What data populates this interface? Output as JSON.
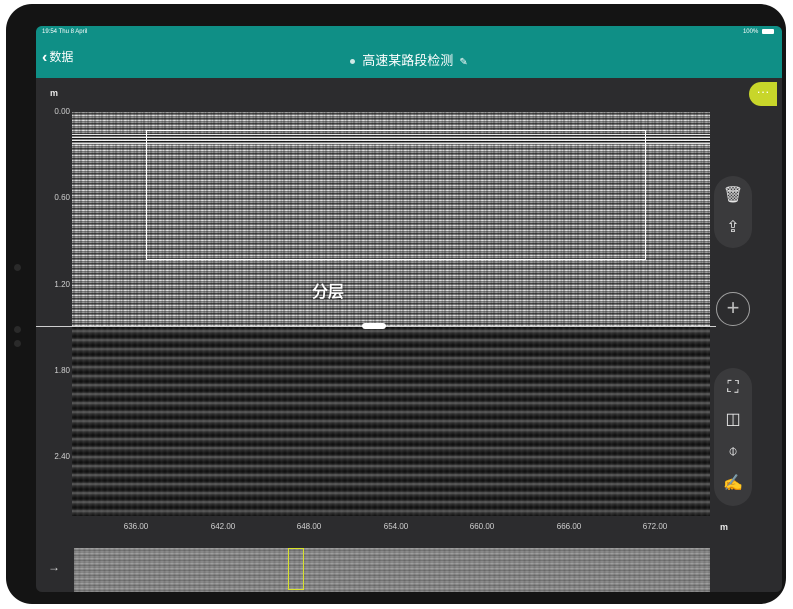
{
  "status_bar": {
    "time": "19:54 Thu 8 April",
    "battery": "100%"
  },
  "nav": {
    "back_label": "数据",
    "title": "高速某路段检测"
  },
  "chart_data": {
    "type": "heatmap",
    "ylabel": "m",
    "xlabel": "m",
    "y_ticks": [
      "0.00",
      "0.60",
      "1.20",
      "1.80",
      "2.40"
    ],
    "x_ticks": [
      "636.00",
      "642.00",
      "648.00",
      "654.00",
      "660.00",
      "666.00",
      "672.00"
    ],
    "ylim": [
      0,
      2.9
    ],
    "xlim": [
      632,
      676
    ],
    "selection_label": "分层"
  },
  "icons": {
    "more": "more-icon",
    "delete": "trash-icon",
    "export": "share-icon",
    "add": "add-icon",
    "select": "select-rect-icon",
    "split": "split-icon",
    "marker": "pin-icon",
    "annotate": "pen-icon",
    "minimap_arrow": "arrow-right-icon"
  },
  "colors": {
    "header": "#0f8f86",
    "accent": "#c8d62a",
    "background": "#2c2c2e"
  }
}
